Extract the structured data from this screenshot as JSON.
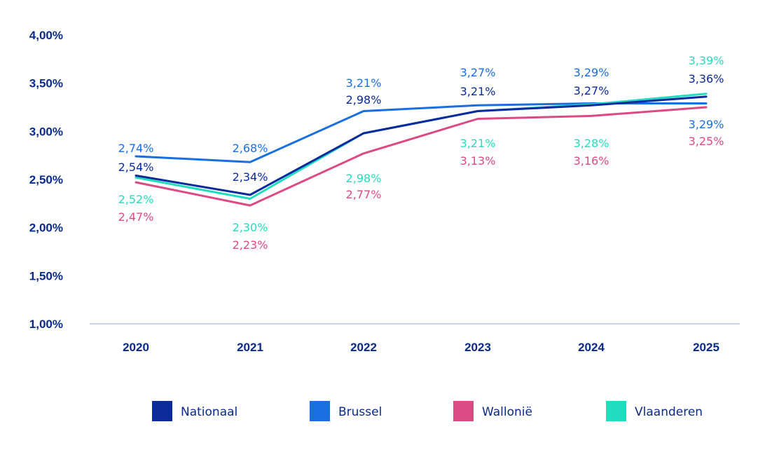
{
  "chart_data": {
    "type": "line",
    "title": "",
    "xlabel": "",
    "ylabel": "",
    "categories": [
      "2020",
      "2021",
      "2022",
      "2023",
      "2024",
      "2025"
    ],
    "ylim": [
      1.0,
      4.0
    ],
    "yticks": [
      1.0,
      1.5,
      2.0,
      2.5,
      3.0,
      3.5,
      4.0
    ],
    "ytick_labels": [
      "1,00%",
      "1,50%",
      "2,00%",
      "2,50%",
      "3,00%",
      "3,50%",
      "4,00%"
    ],
    "grid": false,
    "legend_position": "bottom",
    "series": [
      {
        "name": "Nationaal",
        "color": "#0b2a9b",
        "values": [
          2.54,
          2.34,
          2.98,
          3.21,
          3.27,
          3.36
        ],
        "labels": [
          "2,54%",
          "2,34%",
          "2,98%",
          "3,21%",
          "3,27%",
          "3,36%"
        ]
      },
      {
        "name": "Brussel",
        "color": "#1a6fe0",
        "values": [
          2.74,
          2.68,
          3.21,
          3.27,
          3.29,
          3.29
        ],
        "labels": [
          "2,74%",
          "2,68%",
          "3,21%",
          "3,27%",
          "3,29%",
          "3,29%"
        ]
      },
      {
        "name": "Wallonië",
        "color": "#dc4a86",
        "values": [
          2.47,
          2.23,
          2.77,
          3.13,
          3.16,
          3.25
        ],
        "labels": [
          "2,47%",
          "2,23%",
          "2,77%",
          "3,13%",
          "3,16%",
          "3,25%"
        ]
      },
      {
        "name": "Vlaanderen",
        "color": "#22dcc0",
        "values": [
          2.52,
          2.3,
          2.98,
          3.21,
          3.28,
          3.39
        ],
        "labels": [
          "2,52%",
          "2,30%",
          "2,98%",
          "3,21%",
          "3,28%",
          "3,39%"
        ]
      }
    ]
  }
}
